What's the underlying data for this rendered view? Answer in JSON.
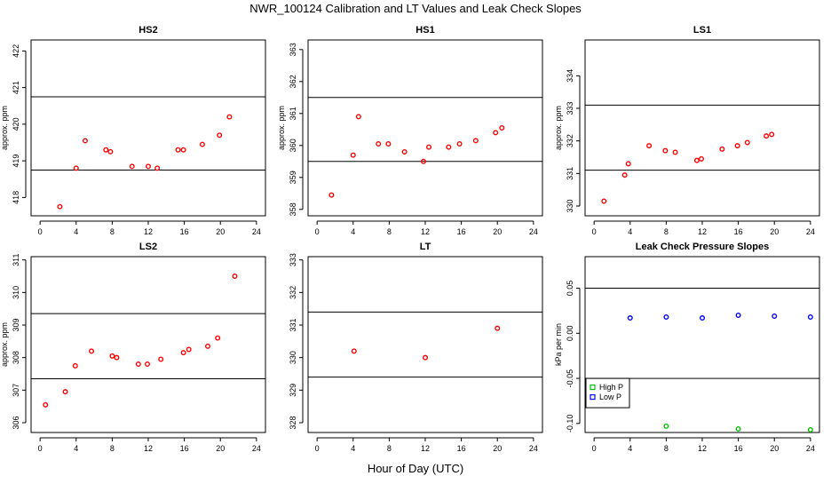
{
  "figure": {
    "title": "NWR_100124  Calibration and LT Values and Leak Check Slopes",
    "xlabel": "Hour of Day (UTC)"
  },
  "colors": {
    "point": "#ff0000",
    "high_p": "#00c000",
    "low_p": "#0000ff",
    "line": "#000000"
  },
  "chart_data": [
    {
      "type": "scatter",
      "title": "HS2",
      "ylabel": "approx. ppm",
      "xlim": [
        -1,
        25
      ],
      "ylim": [
        417.5,
        422.3
      ],
      "xticks": [
        0,
        4,
        8,
        12,
        16,
        20,
        24
      ],
      "yticks": [
        418,
        419,
        420,
        421,
        422
      ],
      "hlines": [
        418.75,
        420.75
      ],
      "series": [
        {
          "color": "#ff0000",
          "x": [
            2.2,
            4.0,
            5.0,
            7.3,
            7.8,
            10.2,
            12.0,
            13.0,
            15.3,
            15.9,
            18.0,
            19.9,
            21.0
          ],
          "y": [
            417.75,
            418.8,
            419.55,
            419.3,
            419.25,
            418.85,
            418.85,
            418.8,
            419.3,
            419.3,
            419.45,
            419.7,
            420.2
          ]
        }
      ]
    },
    {
      "type": "scatter",
      "title": "HS1",
      "ylabel": "approx. ppm",
      "xlim": [
        -1,
        25
      ],
      "ylim": [
        357.8,
        363.3
      ],
      "xticks": [
        0,
        4,
        8,
        12,
        16,
        20,
        24
      ],
      "yticks": [
        358,
        359,
        360,
        361,
        362,
        363
      ],
      "hlines": [
        359.5,
        361.5
      ],
      "series": [
        {
          "color": "#ff0000",
          "x": [
            1.6,
            4.0,
            4.6,
            6.8,
            7.9,
            9.7,
            11.8,
            12.4,
            14.6,
            15.8,
            17.6,
            19.8,
            20.5
          ],
          "y": [
            358.45,
            359.7,
            360.9,
            360.05,
            360.05,
            359.8,
            359.5,
            359.95,
            359.95,
            360.05,
            360.15,
            360.4,
            360.55
          ]
        }
      ]
    },
    {
      "type": "scatter",
      "title": "LS1",
      "ylabel": "approx. ppm",
      "xlim": [
        -1,
        25
      ],
      "ylim": [
        329.7,
        335.1
      ],
      "xticks": [
        0,
        4,
        8,
        12,
        16,
        20,
        24
      ],
      "yticks": [
        330,
        331,
        332,
        333,
        334
      ],
      "hlines": [
        331.1,
        333.1
      ],
      "series": [
        {
          "color": "#ff0000",
          "x": [
            1.1,
            3.4,
            3.8,
            6.1,
            7.9,
            9.0,
            11.4,
            11.9,
            14.2,
            15.9,
            17.0,
            19.1,
            19.7
          ],
          "y": [
            330.15,
            330.95,
            331.3,
            331.85,
            331.7,
            331.65,
            331.4,
            331.45,
            331.75,
            331.85,
            331.95,
            332.15,
            332.2
          ]
        }
      ]
    },
    {
      "type": "scatter",
      "title": "LS2",
      "ylabel": "approx. ppm",
      "xlim": [
        -1,
        25
      ],
      "ylim": [
        305.7,
        311.1
      ],
      "xticks": [
        0,
        4,
        8,
        12,
        16,
        20,
        24
      ],
      "yticks": [
        306,
        307,
        308,
        309,
        310,
        311
      ],
      "hlines": [
        307.35,
        309.35
      ],
      "series": [
        {
          "color": "#ff0000",
          "x": [
            0.6,
            2.8,
            3.9,
            5.7,
            8.0,
            8.5,
            10.9,
            11.9,
            13.4,
            15.9,
            16.5,
            18.6,
            19.7,
            21.6
          ],
          "y": [
            306.55,
            306.95,
            307.75,
            308.2,
            308.05,
            308.0,
            307.8,
            307.8,
            307.95,
            308.15,
            308.25,
            308.35,
            308.6,
            310.5
          ]
        }
      ]
    },
    {
      "type": "scatter",
      "title": "LT",
      "ylabel": "",
      "xlim": [
        -1,
        25
      ],
      "ylim": [
        327.7,
        333.1
      ],
      "xticks": [
        0,
        4,
        8,
        12,
        16,
        20,
        24
      ],
      "yticks": [
        328,
        329,
        330,
        331,
        332,
        333
      ],
      "hlines": [
        329.4,
        331.4
      ],
      "series": [
        {
          "color": "#ff0000",
          "x": [
            4.1,
            12.0,
            20.0
          ],
          "y": [
            330.2,
            330.0,
            330.9
          ]
        }
      ]
    },
    {
      "type": "scatter",
      "title": "Leak Check Pressure Slopes",
      "ylabel": "kPa per min",
      "xlim": [
        -1,
        25
      ],
      "ylim": [
        -0.11,
        0.085
      ],
      "xticks": [
        0,
        4,
        8,
        12,
        16,
        20,
        24
      ],
      "yticks": [
        -0.1,
        -0.05,
        0.0,
        0.05
      ],
      "yticklabels": [
        "-0.10",
        "-0.05",
        "0.00",
        "0.05"
      ],
      "hlines": [
        -0.05,
        0.05
      ],
      "legend": {
        "position": "bottom-left",
        "entries": [
          "High P",
          "Low P"
        ]
      },
      "series": [
        {
          "name": "High P",
          "color": "#00c000",
          "x": [
            8,
            16,
            24
          ],
          "y": [
            -0.103,
            -0.106,
            -0.107
          ]
        },
        {
          "name": "Low P",
          "color": "#0000ff",
          "x": [
            4,
            8,
            12,
            16,
            20,
            24
          ],
          "y": [
            0.017,
            0.018,
            0.017,
            0.02,
            0.019,
            0.018
          ]
        }
      ]
    }
  ]
}
